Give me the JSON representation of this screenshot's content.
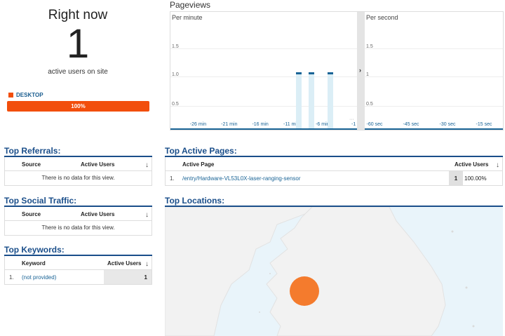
{
  "right_now": {
    "title": "Right now",
    "count": "1",
    "subtitle": "active users on site",
    "device_label": "DESKTOP",
    "device_percent_label": "100%",
    "device_share": 1.0,
    "device_color": "#f24e0c"
  },
  "pageviews": {
    "title": "Pageviews",
    "per_minute": {
      "label": "Per minute",
      "y_ticks": [
        "1.5",
        "1.0",
        "0.5"
      ],
      "x_ticks": [
        "-26 min",
        "-21 min",
        "-16 min",
        "-11 min",
        "-6 min",
        "-1"
      ],
      "bars": [
        {
          "min_ago": -10,
          "value": 1
        },
        {
          "min_ago": -8,
          "value": 1
        },
        {
          "min_ago": -5,
          "value": 1
        }
      ]
    },
    "per_second": {
      "label": "Per second",
      "y_ticks": [
        "1.5",
        "1",
        "0.5"
      ],
      "x_ticks": [
        "-60 sec",
        "-45 sec",
        "-30 sec",
        "-15 sec"
      ]
    },
    "expand_icon": "chevron-right-icon",
    "colors": {
      "bar": "#1a6496",
      "bar_bg": "#dbeef6"
    }
  },
  "referrals": {
    "title": "Top Referrals:",
    "col_source": "Source",
    "col_users": "Active Users",
    "empty": "There is no data for this view."
  },
  "social": {
    "title": "Top Social Traffic:",
    "col_source": "Source",
    "col_users": "Active Users",
    "empty": "There is no data for this view."
  },
  "keywords": {
    "title": "Top Keywords:",
    "col_keyword": "Keyword",
    "col_users": "Active Users",
    "rows": [
      {
        "index": "1.",
        "keyword": "(not provided)",
        "users": "1"
      }
    ]
  },
  "active_pages": {
    "title": "Top Active Pages:",
    "col_page": "Active Page",
    "col_users": "Active Users",
    "rows": [
      {
        "index": "1.",
        "page": "/entry/Hardware-VL53L0X-laser-ranging-sensor",
        "users": "1",
        "percent": "100.00%"
      }
    ]
  },
  "locations": {
    "title": "Top Locations:",
    "marker_color": "#f47b2d",
    "sea_color": "#e9f4fa",
    "land_color": "#f2f2f2"
  }
}
